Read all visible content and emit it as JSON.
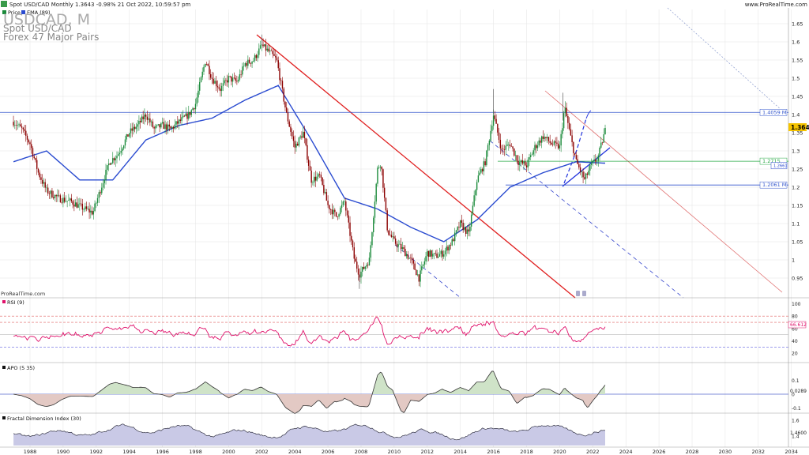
{
  "header": {
    "line": "Spot USD/CAD Monthly 1.3643 -0.98% 21 Oct 2022, 10:59:57 pm",
    "site": "www.ProRealTime.com",
    "legend_price": "Price",
    "legend_ema": "EMA (89)",
    "ticker": "USDCAD, M",
    "name": "Spot USD/CAD",
    "group": "Forex 47 Major Pairs",
    "source": "ProRealTime.com"
  },
  "colors": {
    "candle_up": "#1a8a3a",
    "candle_down": "#8b0000",
    "ema": "#2a4bd0",
    "rsi": "#e0106a",
    "grid": "#e3e3e3"
  },
  "chart_data": [
    {
      "type": "candlestick",
      "ylim": [
        0.92,
        1.68
      ],
      "x_ticks": [
        "1988",
        "1990",
        "1992",
        "1994",
        "1996",
        "1998",
        "2000",
        "2002",
        "2004",
        "2006",
        "2008",
        "2010",
        "2012",
        "2014",
        "2016",
        "2018",
        "2020",
        "2022",
        "2024",
        "2026",
        "2028",
        "2030",
        "2032",
        "2034"
      ],
      "y_ticks": [
        "1.65",
        "1.6",
        "1.55",
        "1.5",
        "1.45",
        "1.4",
        "1.35",
        "1.3",
        "1.25",
        "1.2",
        "1.15",
        "1.1",
        "1.05",
        "1",
        "0.95"
      ],
      "last_price_label": "1.3643",
      "levels": [
        {
          "label": "1.4059 M",
          "value": 1.4059,
          "color": "#3355cc"
        },
        {
          "label": "1.2715",
          "value": 1.2715,
          "color": "#27a844"
        },
        {
          "label": "1.2661",
          "value": 1.2661,
          "color": "#2a4bd0"
        },
        {
          "label": "1.2061 M",
          "value": 1.2061,
          "color": "#3355cc"
        }
      ],
      "series": [
        {
          "name": "Price",
          "anchors": [
            [
              1987,
              1.38
            ],
            [
              1987.5,
              1.36
            ],
            [
              1988,
              1.32
            ],
            [
              1988.5,
              1.24
            ],
            [
              1989,
              1.19
            ],
            [
              1989.7,
              1.17
            ],
            [
              1990.5,
              1.16
            ],
            [
              1991.3,
              1.14
            ],
            [
              1991.8,
              1.13
            ],
            [
              1992.3,
              1.2
            ],
            [
              1992.8,
              1.27
            ],
            [
              1993.3,
              1.29
            ],
            [
              1994,
              1.35
            ],
            [
              1994.5,
              1.37
            ],
            [
              1995,
              1.4
            ],
            [
              1995.5,
              1.36
            ],
            [
              1996,
              1.37
            ],
            [
              1996.5,
              1.36
            ],
            [
              1997,
              1.38
            ],
            [
              1997.6,
              1.4
            ],
            [
              1998,
              1.43
            ],
            [
              1998.6,
              1.55
            ],
            [
              1999,
              1.5
            ],
            [
              1999.5,
              1.47
            ],
            [
              2000,
              1.5
            ],
            [
              2000.5,
              1.49
            ],
            [
              2001,
              1.54
            ],
            [
              2001.5,
              1.55
            ],
            [
              2002,
              1.59
            ],
            [
              2002.5,
              1.57
            ],
            [
              2002.9,
              1.55
            ],
            [
              2003.5,
              1.4
            ],
            [
              2004,
              1.31
            ],
            [
              2004.5,
              1.35
            ],
            [
              2005,
              1.22
            ],
            [
              2005.5,
              1.23
            ],
            [
              2006,
              1.15
            ],
            [
              2006.5,
              1.12
            ],
            [
              2007,
              1.16
            ],
            [
              2007.6,
              1.0
            ],
            [
              2007.9,
              0.96
            ],
            [
              2008.5,
              1.0
            ],
            [
              2009,
              1.25
            ],
            [
              2009.2,
              1.27
            ],
            [
              2009.6,
              1.08
            ],
            [
              2010,
              1.05
            ],
            [
              2010.5,
              1.03
            ],
            [
              2011,
              1.0
            ],
            [
              2011.5,
              0.95
            ],
            [
              2012,
              1.02
            ],
            [
              2012.5,
              1.01
            ],
            [
              2013,
              1.02
            ],
            [
              2013.5,
              1.05
            ],
            [
              2014,
              1.1
            ],
            [
              2014.5,
              1.07
            ],
            [
              2015,
              1.22
            ],
            [
              2015.5,
              1.27
            ],
            [
              2016,
              1.4
            ],
            [
              2016.5,
              1.3
            ],
            [
              2017,
              1.32
            ],
            [
              2017.5,
              1.27
            ],
            [
              2018,
              1.26
            ],
            [
              2018.5,
              1.31
            ],
            [
              2019,
              1.34
            ],
            [
              2019.5,
              1.32
            ],
            [
              2020,
              1.31
            ],
            [
              2020.3,
              1.42
            ],
            [
              2020.7,
              1.33
            ],
            [
              2021,
              1.27
            ],
            [
              2021.5,
              1.22
            ],
            [
              2021.9,
              1.26
            ],
            [
              2022.3,
              1.28
            ],
            [
              2022.8,
              1.3643
            ]
          ]
        },
        {
          "name": "EMA (89)",
          "anchors": [
            [
              1987,
              1.27
            ],
            [
              1989,
              1.3
            ],
            [
              1991,
              1.22
            ],
            [
              1993,
              1.22
            ],
            [
              1995,
              1.33
            ],
            [
              1997,
              1.37
            ],
            [
              1999,
              1.39
            ],
            [
              2001,
              1.44
            ],
            [
              2003,
              1.48
            ],
            [
              2005,
              1.33
            ],
            [
              2007,
              1.17
            ],
            [
              2009,
              1.14
            ],
            [
              2011,
              1.09
            ],
            [
              2013,
              1.05
            ],
            [
              2015,
              1.11
            ],
            [
              2017,
              1.2
            ],
            [
              2019,
              1.24
            ],
            [
              2021,
              1.27
            ],
            [
              2022.8,
              1.2661
            ]
          ]
        }
      ]
    },
    {
      "type": "line",
      "title": "RSI (9)",
      "ylim": [
        0,
        100
      ],
      "y_ticks": [
        "100",
        "80",
        "60",
        "40",
        "20"
      ],
      "last_label": "66.612",
      "last_value": 66.612
    },
    {
      "type": "area",
      "title": "APO (5 35)",
      "ylim": [
        -0.14,
        0.16
      ],
      "y_ticks": [
        "0.1",
        "0",
        "-0.1"
      ],
      "last_label": "0.0289",
      "last_value": 0.0289
    },
    {
      "type": "area",
      "title": "Fractal Dimension Index (30)",
      "ylim": [
        1.25,
        1.68
      ],
      "y_ticks": [
        "1.6",
        "1.4"
      ],
      "last_label": "1.4600",
      "last_value": 1.46
    }
  ]
}
